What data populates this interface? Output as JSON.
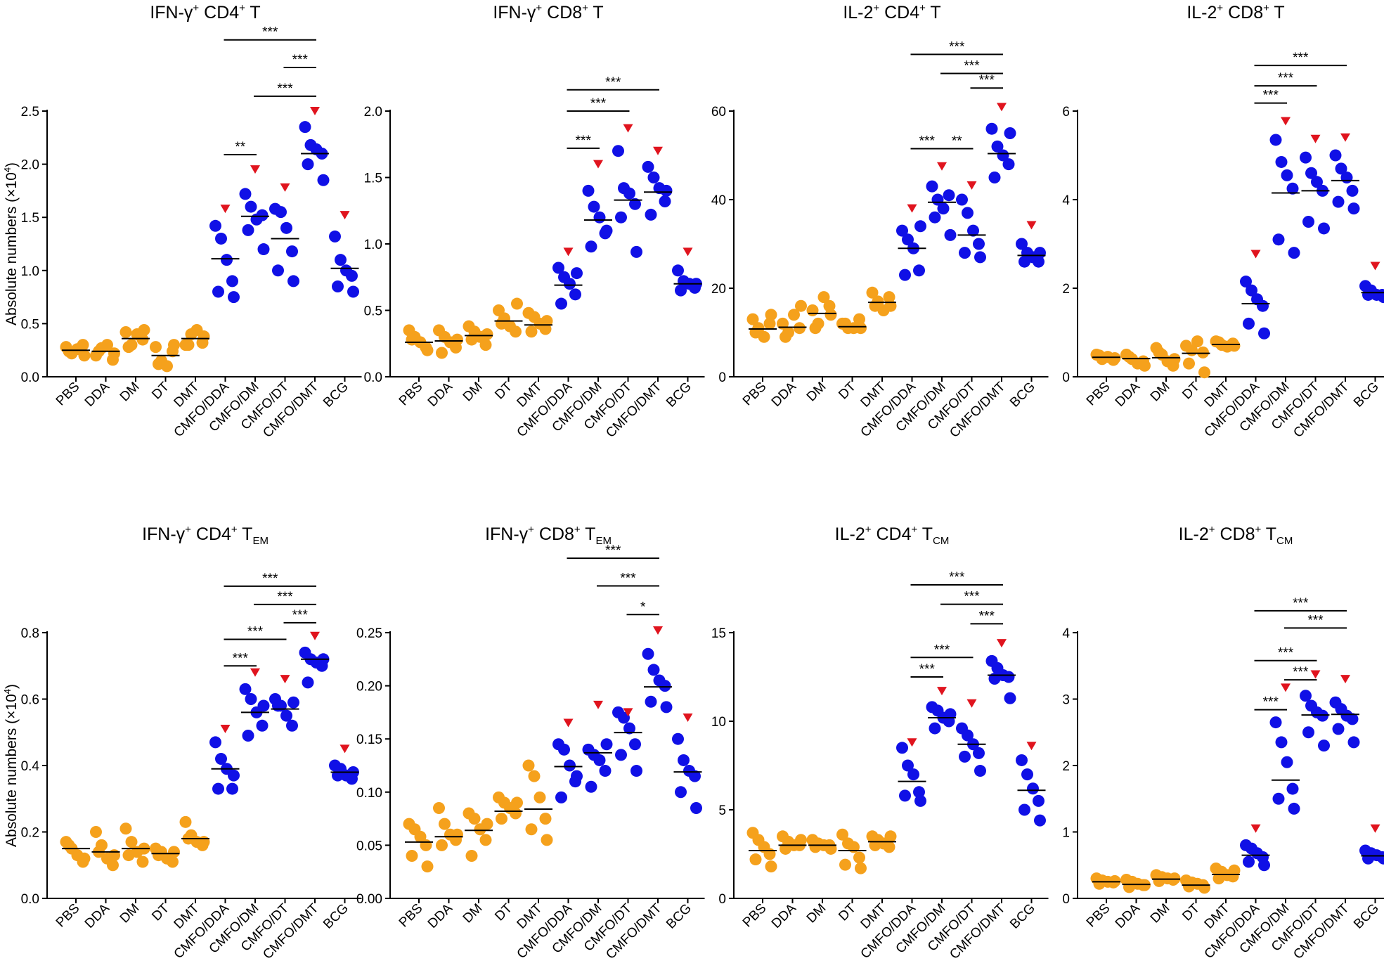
{
  "colors": {
    "adjuvant": "#F5A11C",
    "cmfo": "#1010E6",
    "marker": "#E0141E",
    "axis": "#000000"
  },
  "chart_data": [
    {
      "type": "scatter",
      "title": {
        "main": "IFN-γ",
        "sup1": "+",
        "mid": " CD4",
        "sup2": "+",
        "tail": " T",
        "sub": ""
      },
      "ylabel": "Absolute numbers (×10",
      "ylabel_sup": "4",
      "ylabel_close": ")",
      "ylim": [
        0,
        2.5
      ],
      "yticks": [
        "0.0",
        "0.5",
        "1.0",
        "1.5",
        "2.0",
        "2.5"
      ],
      "categories": [
        "PBS",
        "DDA",
        "DM",
        "DT",
        "DMT",
        "CMFO/DDA",
        "CMFO/DM",
        "CMFO/DT",
        "CMFO/DMT",
        "BCG"
      ],
      "points": [
        [
          0.28,
          0.22,
          0.26,
          0.3,
          0.24,
          0.2
        ],
        [
          0.2,
          0.27,
          0.3,
          0.16,
          0.24,
          0.22
        ],
        [
          0.42,
          0.3,
          0.4,
          0.35,
          0.28,
          0.44
        ],
        [
          0.28,
          0.15,
          0.1,
          0.24,
          0.12,
          0.3
        ],
        [
          0.3,
          0.4,
          0.44,
          0.32,
          0.3,
          0.38
        ],
        [
          1.42,
          1.3,
          1.1,
          0.9,
          0.8,
          0.75
        ],
        [
          1.72,
          1.6,
          1.48,
          1.52,
          1.38,
          1.2
        ],
        [
          1.58,
          1.55,
          1.4,
          1.18,
          1.0,
          0.9
        ],
        [
          2.35,
          2.18,
          2.14,
          2.1,
          2.0,
          1.85
        ],
        [
          1.32,
          1.1,
          1.0,
          0.95,
          0.85,
          0.8
        ]
      ],
      "medians": [
        0.25,
        0.24,
        0.36,
        0.2,
        0.36,
        1.11,
        1.51,
        1.3,
        2.1,
        1.02
      ],
      "markers": [
        1.58,
        1.95,
        1.78,
        2.5,
        1.52
      ],
      "brackets": [
        {
          "from": 5,
          "to": 6,
          "y": 2.09,
          "label": "**"
        },
        {
          "from": 6,
          "to": 8,
          "y": 2.64,
          "label": "***"
        },
        {
          "from": 7,
          "to": 8,
          "y": 2.91,
          "label": "***"
        },
        {
          "from": 5,
          "to": 8,
          "y": 3.17,
          "label": "***"
        }
      ]
    },
    {
      "type": "scatter",
      "title": {
        "main": "IFN-γ",
        "sup1": "+",
        "mid": " CD8",
        "sup2": "+",
        "tail": " T",
        "sub": ""
      },
      "ylabel": "",
      "ylim": [
        0,
        2.0
      ],
      "yticks": [
        "0.0",
        "0.5",
        "1.0",
        "1.5",
        "2.0"
      ],
      "categories": [
        "PBS",
        "DDA",
        "DM",
        "DT",
        "DMT",
        "CMFO/DDA",
        "CMFO/DM",
        "CMFO/DT",
        "CMFO/DMT",
        "BCG"
      ],
      "points": [
        [
          0.35,
          0.3,
          0.26,
          0.22,
          0.28,
          0.2
        ],
        [
          0.35,
          0.3,
          0.26,
          0.22,
          0.18,
          0.28
        ],
        [
          0.38,
          0.34,
          0.3,
          0.24,
          0.28,
          0.32
        ],
        [
          0.5,
          0.44,
          0.38,
          0.34,
          0.4,
          0.55
        ],
        [
          0.48,
          0.45,
          0.4,
          0.36,
          0.34,
          0.42
        ],
        [
          0.82,
          0.75,
          0.7,
          0.62,
          0.55,
          0.78
        ],
        [
          1.4,
          1.28,
          1.2,
          1.08,
          0.98,
          1.1
        ],
        [
          1.7,
          1.42,
          1.38,
          1.3,
          1.2,
          0.94
        ],
        [
          1.58,
          1.5,
          1.42,
          1.32,
          1.22,
          1.4
        ],
        [
          0.8,
          0.72,
          0.7,
          0.67,
          0.65,
          0.7
        ]
      ],
      "medians": [
        0.26,
        0.27,
        0.31,
        0.42,
        0.39,
        0.69,
        1.18,
        1.33,
        1.39,
        0.7
      ],
      "markers": [
        0.94,
        1.6,
        1.87,
        1.7,
        0.94
      ],
      "brackets": [
        {
          "from": 5,
          "to": 6,
          "y": 1.72,
          "label": "***"
        },
        {
          "from": 5,
          "to": 7,
          "y": 2.0,
          "label": "***"
        },
        {
          "from": 5,
          "to": 8,
          "y": 2.16,
          "label": "***"
        }
      ]
    },
    {
      "type": "scatter",
      "title": {
        "main": "IL-2",
        "sup1": "+",
        "mid": " CD4",
        "sup2": "+",
        "tail": " T",
        "sub": ""
      },
      "ylabel": "",
      "ylim": [
        0,
        60
      ],
      "yticks": [
        "0",
        "20",
        "40",
        "60"
      ],
      "categories": [
        "PBS",
        "DDA",
        "DM",
        "DT",
        "DMT",
        "CMFO/DDA",
        "CMFO/DM",
        "CMFO/DT",
        "CMFO/DMT",
        "BCG"
      ],
      "points": [
        [
          13,
          11,
          9,
          12,
          10,
          14
        ],
        [
          12,
          10,
          14,
          11,
          9,
          16
        ],
        [
          15,
          12,
          18,
          16,
          11,
          14
        ],
        [
          12,
          11,
          11,
          13,
          12,
          11
        ],
        [
          19,
          17,
          15,
          18,
          16,
          16
        ],
        [
          33,
          31,
          29,
          24,
          23,
          34
        ],
        [
          43,
          40,
          38,
          41,
          36,
          32
        ],
        [
          40,
          37,
          33,
          30,
          28,
          27
        ],
        [
          56,
          52,
          50,
          48,
          45,
          55
        ],
        [
          30,
          28,
          27,
          26,
          26,
          28
        ]
      ],
      "medians": [
        10.8,
        11.2,
        14.3,
        11.3,
        16.8,
        29,
        39.4,
        32,
        50.4,
        27.4
      ],
      "markers": [
        38,
        47.5,
        43.2,
        60.9,
        34.2
      ],
      "brackets": [
        {
          "from": 5,
          "to": 6,
          "y": 51.5,
          "label": "***"
        },
        {
          "from": 6,
          "to": 7,
          "y": 51.5,
          "label": "**"
        },
        {
          "from": 7,
          "to": 8,
          "y": 65.2,
          "label": "***"
        },
        {
          "from": 6,
          "to": 8,
          "y": 68.5,
          "label": "***"
        },
        {
          "from": 5,
          "to": 8,
          "y": 72.8,
          "label": "***"
        }
      ]
    },
    {
      "type": "scatter",
      "title": {
        "main": "IL-2",
        "sup1": "+",
        "mid": " CD8",
        "sup2": "+",
        "tail": " T",
        "sub": ""
      },
      "ylabel": "",
      "ylim": [
        0,
        6
      ],
      "yticks": [
        "0",
        "2",
        "4",
        "6"
      ],
      "categories": [
        "PBS",
        "DDA",
        "DM",
        "DT",
        "DMT",
        "CMFO/DDA",
        "CMFO/DM",
        "CMFO/DT",
        "CMFO/DMT",
        "BCG"
      ],
      "points": [
        [
          0.5,
          0.4,
          0.45,
          0.38,
          0.48,
          0.42
        ],
        [
          0.5,
          0.4,
          0.3,
          0.35,
          0.45,
          0.25
        ],
        [
          0.65,
          0.5,
          0.35,
          0.25,
          0.55,
          0.4
        ],
        [
          0.7,
          0.6,
          0.8,
          0.55,
          0.3,
          0.1
        ],
        [
          0.8,
          0.72,
          0.68,
          0.75,
          0.78,
          0.7
        ],
        [
          2.15,
          1.95,
          1.75,
          1.6,
          1.2,
          0.98
        ],
        [
          5.35,
          4.85,
          4.55,
          4.25,
          3.1,
          2.8
        ],
        [
          4.95,
          4.6,
          4.4,
          4.2,
          3.5,
          3.35
        ],
        [
          5,
          4.7,
          4.5,
          4.2,
          3.95,
          3.8
        ],
        [
          2.05,
          1.95,
          1.85,
          1.85,
          1.85,
          1.8
        ]
      ],
      "medians": [
        0.44,
        0.41,
        0.43,
        0.53,
        0.73,
        1.65,
        4.15,
        4.2,
        4.43,
        1.9
      ],
      "markers": [
        2.77,
        5.77,
        5.37,
        5.4,
        2.5
      ],
      "brackets": [
        {
          "from": 5,
          "to": 6,
          "y": 6.18,
          "label": "***"
        },
        {
          "from": 5,
          "to": 7,
          "y": 6.57,
          "label": "***"
        },
        {
          "from": 5,
          "to": 8,
          "y": 7.03,
          "label": "***"
        }
      ]
    },
    {
      "type": "scatter",
      "title": {
        "main": "IFN-γ",
        "sup1": "+",
        "mid": " CD4",
        "sup2": "+",
        "tail": " T",
        "sub": "EM"
      },
      "ylabel": "Absolute numbers (×10",
      "ylabel_sup": "4",
      "ylabel_close": ")",
      "ylim": [
        0,
        0.8
      ],
      "yticks": [
        "0.0",
        "0.2",
        "0.4",
        "0.6",
        "0.8"
      ],
      "categories": [
        "PBS",
        "DDA",
        "DM",
        "DT",
        "DMT",
        "CMFO/DDA",
        "CMFO/DM",
        "CMFO/DT",
        "CMFO/DMT",
        "BCG"
      ],
      "points": [
        [
          0.17,
          0.15,
          0.13,
          0.11,
          0.16,
          0.12
        ],
        [
          0.2,
          0.16,
          0.12,
          0.1,
          0.14,
          0.13
        ],
        [
          0.21,
          0.17,
          0.14,
          0.11,
          0.13,
          0.15
        ],
        [
          0.15,
          0.14,
          0.12,
          0.11,
          0.13,
          0.14
        ],
        [
          0.23,
          0.19,
          0.17,
          0.16,
          0.18,
          0.17
        ],
        [
          0.47,
          0.42,
          0.39,
          0.33,
          0.33,
          0.37
        ],
        [
          0.63,
          0.6,
          0.56,
          0.52,
          0.49,
          0.58
        ],
        [
          0.6,
          0.58,
          0.55,
          0.52,
          0.58,
          0.59
        ],
        [
          0.74,
          0.72,
          0.71,
          0.7,
          0.65,
          0.72
        ],
        [
          0.4,
          0.39,
          0.37,
          0.36,
          0.37,
          0.38
        ]
      ],
      "medians": [
        0.15,
        0.14,
        0.15,
        0.135,
        0.18,
        0.39,
        0.56,
        0.57,
        0.72,
        0.38
      ],
      "markers": [
        0.51,
        0.68,
        0.66,
        0.79,
        0.45
      ],
      "brackets": [
        {
          "from": 5,
          "to": 6,
          "y": 0.7,
          "label": "***"
        },
        {
          "from": 5,
          "to": 7,
          "y": 0.78,
          "label": "***"
        },
        {
          "from": 7,
          "to": 8,
          "y": 0.83,
          "label": "***"
        },
        {
          "from": 6,
          "to": 8,
          "y": 0.885,
          "label": "***"
        },
        {
          "from": 5,
          "to": 8,
          "y": 0.94,
          "label": "***"
        }
      ]
    },
    {
      "type": "scatter",
      "title": {
        "main": "IFN-γ",
        "sup1": "+",
        "mid": " CD8",
        "sup2": "+",
        "tail": " T",
        "sub": "EM"
      },
      "ylabel": "",
      "ylim": [
        0,
        0.25
      ],
      "yticks": [
        "0.00",
        "0.05",
        "0.10",
        "0.15",
        "0.20",
        "0.25"
      ],
      "categories": [
        "PBS",
        "DDA",
        "DM",
        "DT",
        "DMT",
        "CMFO/DDA",
        "CMFO/DM",
        "CMFO/DT",
        "CMFO/DMT",
        "BCG"
      ],
      "points": [
        [
          0.07,
          0.065,
          0.058,
          0.05,
          0.04,
          0.03
        ],
        [
          0.085,
          0.07,
          0.06,
          0.055,
          0.05,
          0.06
        ],
        [
          0.08,
          0.075,
          0.065,
          0.055,
          0.04,
          0.07
        ],
        [
          0.095,
          0.09,
          0.085,
          0.08,
          0.075,
          0.09
        ],
        [
          0.125,
          0.115,
          0.095,
          0.075,
          0.065,
          0.055
        ],
        [
          0.145,
          0.14,
          0.125,
          0.11,
          0.095,
          0.115
        ],
        [
          0.14,
          0.135,
          0.13,
          0.12,
          0.105,
          0.145
        ],
        [
          0.175,
          0.17,
          0.16,
          0.145,
          0.135,
          0.12
        ],
        [
          0.23,
          0.215,
          0.205,
          0.2,
          0.185,
          0.18
        ],
        [
          0.15,
          0.13,
          0.12,
          0.115,
          0.1,
          0.085
        ]
      ],
      "medians": [
        0.053,
        0.058,
        0.064,
        0.082,
        0.084,
        0.124,
        0.137,
        0.156,
        0.199,
        0.119
      ],
      "markers": [
        0.165,
        0.182,
        0.175,
        0.252,
        0.17
      ],
      "brackets": [
        {
          "from": 7,
          "to": 8,
          "y": 0.267,
          "label": "*"
        },
        {
          "from": 6,
          "to": 8,
          "y": 0.294,
          "label": "***"
        },
        {
          "from": 5,
          "to": 8,
          "y": 0.32,
          "label": "***"
        }
      ]
    },
    {
      "type": "scatter",
      "title": {
        "main": "IL-2",
        "sup1": "+",
        "mid": " CD4",
        "sup2": "+",
        "tail": " T",
        "sub": "CM"
      },
      "ylabel": "",
      "ylim": [
        0,
        15
      ],
      "yticks": [
        "0",
        "5",
        "10",
        "15"
      ],
      "categories": [
        "PBS",
        "DDA",
        "DM",
        "DT",
        "DMT",
        "CMFO/DDA",
        "CMFO/DM",
        "CMFO/DT",
        "CMFO/DMT",
        "BCG"
      ],
      "points": [
        [
          3.7,
          3.3,
          2.9,
          2.5,
          2.2,
          1.8
        ],
        [
          3.5,
          3.2,
          3.0,
          3.0,
          2.8,
          3.3
        ],
        [
          3.3,
          3.1,
          3.0,
          3.0,
          2.9,
          2.8
        ],
        [
          3.6,
          3.1,
          2.9,
          2.3,
          1.9,
          1.7
        ],
        [
          3.5,
          3.3,
          3.1,
          2.9,
          3.0,
          3.5
        ],
        [
          8.5,
          7.5,
          7.0,
          6.0,
          5.8,
          5.5
        ],
        [
          10.8,
          10.6,
          10.2,
          10.0,
          9.6,
          10.4
        ],
        [
          9.6,
          9.2,
          8.7,
          8.2,
          8.0,
          7.2
        ],
        [
          13.4,
          13.0,
          12.6,
          12.5,
          12.4,
          11.3
        ],
        [
          7.8,
          7.0,
          6.2,
          5.5,
          5.0,
          4.4
        ]
      ],
      "medians": [
        2.7,
        3.0,
        3.0,
        2.7,
        3.2,
        6.6,
        10.2,
        8.7,
        12.6,
        6.1
      ],
      "markers": [
        8.8,
        11.7,
        11.0,
        14.4,
        8.6
      ],
      "brackets": [
        {
          "from": 5,
          "to": 6,
          "y": 12.5,
          "label": "***"
        },
        {
          "from": 5,
          "to": 7,
          "y": 13.6,
          "label": "***"
        },
        {
          "from": 7,
          "to": 8,
          "y": 15.5,
          "label": "***"
        },
        {
          "from": 6,
          "to": 8,
          "y": 16.6,
          "label": "***"
        },
        {
          "from": 5,
          "to": 8,
          "y": 17.7,
          "label": "***"
        }
      ]
    },
    {
      "type": "scatter",
      "title": {
        "main": "IL-2",
        "sup1": "+",
        "mid": " CD8",
        "sup2": "+",
        "tail": " T",
        "sub": "CM"
      },
      "ylabel": "",
      "ylim": [
        0,
        4
      ],
      "yticks": [
        "0",
        "1",
        "2",
        "3",
        "4"
      ],
      "categories": [
        "PBS",
        "DDA",
        "DM",
        "DT",
        "DMT",
        "CMFO/DDA",
        "CMFO/DM",
        "CMFO/DT",
        "CMFO/DMT",
        "BCG"
      ],
      "points": [
        [
          0.3,
          0.27,
          0.25,
          0.24,
          0.22,
          0.26
        ],
        [
          0.28,
          0.25,
          0.22,
          0.2,
          0.17,
          0.2
        ],
        [
          0.35,
          0.32,
          0.3,
          0.28,
          0.26,
          0.3
        ],
        [
          0.27,
          0.24,
          0.22,
          0.2,
          0.18,
          0.16
        ],
        [
          0.45,
          0.4,
          0.35,
          0.33,
          0.3,
          0.42
        ],
        [
          0.8,
          0.75,
          0.68,
          0.62,
          0.55,
          0.5
        ],
        [
          2.65,
          2.35,
          2.05,
          1.65,
          1.5,
          1.35
        ],
        [
          3.05,
          2.9,
          2.8,
          2.75,
          2.5,
          2.3
        ],
        [
          2.95,
          2.85,
          2.75,
          2.7,
          2.55,
          2.35
        ],
        [
          0.72,
          0.68,
          0.65,
          0.62,
          0.6,
          0.6
        ]
      ],
      "medians": [
        0.25,
        0.21,
        0.29,
        0.2,
        0.36,
        0.65,
        1.78,
        2.76,
        2.77,
        0.64
      ],
      "markers": [
        1.05,
        3.17,
        3.37,
        3.3,
        1.05
      ],
      "brackets": [
        {
          "from": 5,
          "to": 6,
          "y": 2.84,
          "label": "***"
        },
        {
          "from": 6,
          "to": 7,
          "y": 3.29,
          "label": "***"
        },
        {
          "from": 5,
          "to": 7,
          "y": 3.58,
          "label": "***"
        },
        {
          "from": 6,
          "to": 8,
          "y": 4.07,
          "label": "***"
        },
        {
          "from": 5,
          "to": 8,
          "y": 4.33,
          "label": "***"
        }
      ]
    }
  ]
}
